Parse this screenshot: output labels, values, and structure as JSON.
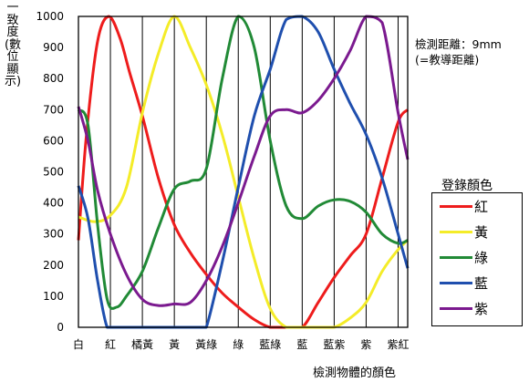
{
  "chart_data": {
    "type": "line",
    "ylabel": "一致度(數位顯示)",
    "xlabel": "檢測物體的顏色",
    "note_lines": [
      "檢測距離：9mm",
      "(=教導距離)"
    ],
    "legend_title": "登錄顏色",
    "categories": [
      "白",
      "紅",
      "橘黃",
      "黃",
      "黃綠",
      "綠",
      "藍綠",
      "藍",
      "藍紫",
      "紫",
      "紫紅"
    ],
    "ylim": [
      0,
      1000
    ],
    "yticks": [
      0,
      100,
      200,
      300,
      400,
      500,
      600,
      700,
      800,
      900,
      1000
    ],
    "grid": true,
    "x_range": [
      0,
      10.3
    ],
    "series": [
      {
        "name": "紅",
        "color": "#ee1c1c",
        "points": [
          [
            0,
            280
          ],
          [
            0.25,
            620
          ],
          [
            0.6,
            920
          ],
          [
            0.95,
            1000
          ],
          [
            1.3,
            930
          ],
          [
            1.6,
            820
          ],
          [
            2,
            680
          ],
          [
            2.5,
            480
          ],
          [
            3,
            330
          ],
          [
            3.5,
            240
          ],
          [
            4,
            170
          ],
          [
            4.5,
            110
          ],
          [
            5,
            65
          ],
          [
            5.5,
            25
          ],
          [
            6,
            0
          ],
          [
            6.5,
            0
          ],
          [
            7,
            0
          ],
          [
            7.5,
            80
          ],
          [
            8,
            160
          ],
          [
            8.5,
            230
          ],
          [
            9,
            300
          ],
          [
            9.5,
            480
          ],
          [
            10,
            660
          ],
          [
            10.3,
            700
          ]
        ]
      },
      {
        "name": "黃",
        "color": "#f4ec28",
        "points": [
          [
            0,
            355
          ],
          [
            0.5,
            340
          ],
          [
            1,
            360
          ],
          [
            1.5,
            450
          ],
          [
            2,
            690
          ],
          [
            2.5,
            880
          ],
          [
            3,
            1000
          ],
          [
            3.5,
            900
          ],
          [
            4,
            780
          ],
          [
            4.5,
            620
          ],
          [
            5,
            420
          ],
          [
            5.5,
            220
          ],
          [
            6,
            60
          ],
          [
            6.5,
            0
          ],
          [
            7,
            0
          ],
          [
            7.5,
            0
          ],
          [
            8,
            0
          ],
          [
            8.5,
            30
          ],
          [
            9,
            80
          ],
          [
            9.5,
            180
          ],
          [
            10,
            250
          ],
          [
            10.3,
            280
          ]
        ]
      },
      {
        "name": "綠",
        "color": "#218a36",
        "points": [
          [
            0,
            700
          ],
          [
            0.3,
            650
          ],
          [
            0.6,
            330
          ],
          [
            0.9,
            90
          ],
          [
            1.2,
            65
          ],
          [
            1.5,
            100
          ],
          [
            2,
            180
          ],
          [
            2.5,
            320
          ],
          [
            3,
            445
          ],
          [
            3.5,
            470
          ],
          [
            4,
            510
          ],
          [
            4.5,
            800
          ],
          [
            5,
            1000
          ],
          [
            5.5,
            900
          ],
          [
            6,
            600
          ],
          [
            6.5,
            390
          ],
          [
            7,
            350
          ],
          [
            7.5,
            390
          ],
          [
            8,
            410
          ],
          [
            8.5,
            405
          ],
          [
            9,
            370
          ],
          [
            9.5,
            300
          ],
          [
            10,
            270
          ],
          [
            10.3,
            280
          ]
        ]
      },
      {
        "name": "藍",
        "color": "#1f4fae",
        "points": [
          [
            0,
            455
          ],
          [
            0.3,
            350
          ],
          [
            0.6,
            150
          ],
          [
            0.9,
            0
          ],
          [
            1.2,
            0
          ],
          [
            2,
            0
          ],
          [
            2.5,
            0
          ],
          [
            3,
            0
          ],
          [
            3.5,
            0
          ],
          [
            3.8,
            0
          ],
          [
            4,
            0
          ],
          [
            4.5,
            210
          ],
          [
            5,
            450
          ],
          [
            5.5,
            680
          ],
          [
            6,
            830
          ],
          [
            6.5,
            990
          ],
          [
            7,
            1000
          ],
          [
            7.5,
            950
          ],
          [
            8,
            830
          ],
          [
            8.5,
            720
          ],
          [
            9,
            620
          ],
          [
            9.5,
            480
          ],
          [
            10,
            300
          ],
          [
            10.3,
            190
          ]
        ]
      },
      {
        "name": "紫",
        "color": "#7b1a8f",
        "points": [
          [
            0,
            710
          ],
          [
            0.3,
            600
          ],
          [
            0.6,
            440
          ],
          [
            1,
            300
          ],
          [
            1.5,
            170
          ],
          [
            2,
            90
          ],
          [
            2.5,
            70
          ],
          [
            3,
            75
          ],
          [
            3.5,
            80
          ],
          [
            4,
            150
          ],
          [
            4.5,
            260
          ],
          [
            5,
            400
          ],
          [
            5.5,
            550
          ],
          [
            6,
            680
          ],
          [
            6.5,
            700
          ],
          [
            7,
            690
          ],
          [
            7.5,
            730
          ],
          [
            8,
            800
          ],
          [
            8.5,
            890
          ],
          [
            9,
            1000
          ],
          [
            9.5,
            980
          ],
          [
            10,
            690
          ],
          [
            10.3,
            540
          ]
        ]
      }
    ]
  }
}
